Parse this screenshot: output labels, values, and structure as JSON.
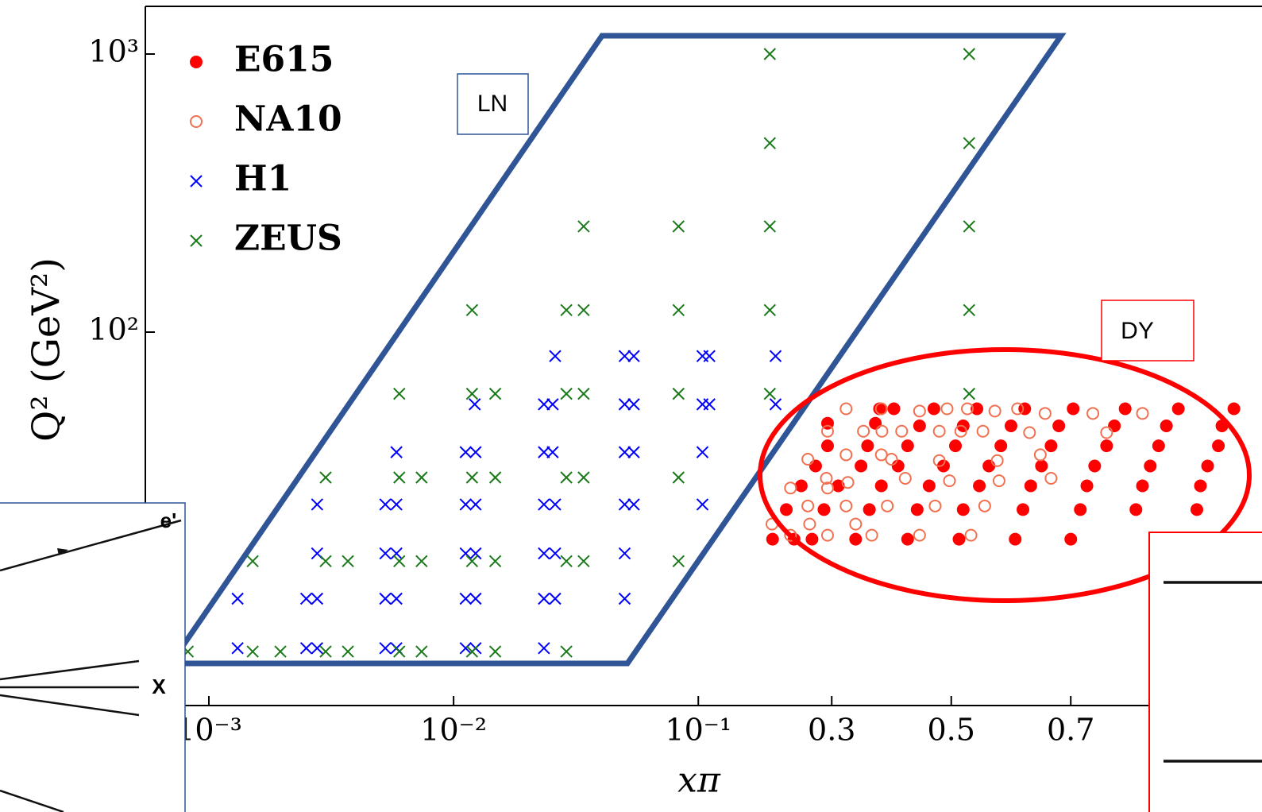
{
  "chart_data": {
    "type": "scatter",
    "xlabel": "xπ",
    "ylabel": "Q² (GeV²)",
    "xscale": "log-linear",
    "xscale_break": 0.2,
    "yscale": "log",
    "xlim": [
      0.00055,
      1.02
    ],
    "ylim": [
      4.54,
      1484
    ],
    "xticks": [
      {
        "value": 0.001,
        "label": "10⁻³"
      },
      {
        "value": 0.01,
        "label": "10⁻²"
      },
      {
        "value": 0.1,
        "label": "10⁻¹"
      },
      0.3,
      0.5,
      0.7
    ],
    "yticks": [
      {
        "value": 100,
        "label": "10²"
      },
      {
        "value": 1000,
        "label": "10³"
      }
    ],
    "legend": "upper left",
    "regions": [
      {
        "label": "LN"
      },
      {
        "label": "DY"
      }
    ],
    "inset_labels": [
      "e'",
      "X"
    ],
    "series": [
      {
        "name": "E615",
        "color": "#ff0000",
        "marker": "filled-circle",
        "x": [
          0.38,
          0.404,
          0.471,
          0.543,
          0.623,
          0.704,
          0.791,
          0.88,
          0.973,
          0.293,
          0.373,
          0.447,
          0.52,
          0.6,
          0.68,
          0.773,
          0.86,
          0.953,
          0.293,
          0.36,
          0.427,
          0.507,
          0.583,
          0.667,
          0.76,
          0.847,
          0.947,
          0.273,
          0.349,
          0.411,
          0.487,
          0.563,
          0.651,
          0.74,
          0.833,
          0.929,
          0.249,
          0.311,
          0.383,
          0.463,
          0.547,
          0.633,
          0.727,
          0.82,
          0.917,
          0.224,
          0.287,
          0.363,
          0.443,
          0.52,
          0.62,
          0.716,
          0.809,
          0.911,
          0.201,
          0.237,
          0.267,
          0.34,
          0.427,
          0.513,
          0.607,
          0.7
        ],
        "y": [
          53,
          53,
          53,
          53,
          53,
          53,
          53,
          53,
          53,
          47,
          47,
          46,
          46,
          46,
          46,
          46,
          46,
          46,
          39,
          39,
          39,
          39,
          39,
          39,
          39,
          39,
          39,
          33,
          33,
          33,
          33,
          33,
          33,
          33,
          33,
          33,
          28,
          28,
          28,
          28,
          28,
          28,
          28,
          28,
          28,
          23,
          23,
          23,
          23,
          23,
          23,
          23,
          23,
          23,
          18,
          18,
          18,
          18,
          18,
          18,
          18,
          18
        ]
      },
      {
        "name": "NA10",
        "color": "#f07050",
        "marker": "open-circle",
        "x": [
          0.324,
          0.383,
          0.447,
          0.493,
          0.527,
          0.573,
          0.611,
          0.657,
          0.737,
          0.82,
          0.293,
          0.353,
          0.384,
          0.417,
          0.48,
          0.516,
          0.553,
          0.631,
          0.76,
          0.324,
          0.383,
          0.4,
          0.48,
          0.577,
          0.649,
          0.26,
          0.291,
          0.327,
          0.423,
          0.497,
          0.58,
          0.667,
          0.231,
          0.293,
          0.26,
          0.324,
          0.393,
          0.473,
          0.556,
          0.2,
          0.263,
          0.34,
          0.231,
          0.293,
          0.367,
          0.447,
          0.533
        ],
        "y": [
          53,
          53,
          52,
          53,
          53,
          52,
          53,
          51,
          51,
          51,
          44,
          44,
          44,
          44,
          44,
          44,
          44,
          43.5,
          43.5,
          36.2,
          36.2,
          34.9,
          34.5,
          34.5,
          36.2,
          34.9,
          29.8,
          28.8,
          29.8,
          29.2,
          29.2,
          29.8,
          27.5,
          27.5,
          23.7,
          23.7,
          23.7,
          23.7,
          23.7,
          20.4,
          20.4,
          20.4,
          18.6,
          18.6,
          18.6,
          18.6,
          18.6
        ]
      },
      {
        "name": "H1",
        "color": "#0000ff",
        "marker": "x",
        "x": [
          0.026,
          0.05,
          0.0545,
          0.104,
          0.111,
          0.206,
          0.0122,
          0.0234,
          0.0254,
          0.05,
          0.0545,
          0.104,
          0.111,
          0.206,
          0.00584,
          0.0112,
          0.0123,
          0.0234,
          0.0254,
          0.05,
          0.0545,
          0.104,
          0.00277,
          0.00526,
          0.00584,
          0.0112,
          0.0123,
          0.0234,
          0.026,
          0.05,
          0.0545,
          0.104,
          0.00277,
          0.00526,
          0.00584,
          0.0112,
          0.0123,
          0.0234,
          0.026,
          0.05,
          0.00131,
          0.0025,
          0.00277,
          0.00526,
          0.00584,
          0.0112,
          0.0123,
          0.0234,
          0.026,
          0.05,
          0.00131,
          0.0025,
          0.00277,
          0.00526,
          0.00584,
          0.0112,
          0.0123,
          0.0234
        ],
        "y": [
          82,
          82,
          82,
          82,
          82,
          82,
          55,
          55,
          55,
          55,
          55,
          55,
          55,
          55,
          37,
          37,
          37,
          37,
          37,
          37,
          37,
          37,
          24,
          24,
          24,
          24,
          24,
          24,
          24,
          24,
          24,
          24,
          16,
          16,
          16,
          16,
          16,
          16,
          16,
          16,
          11,
          11,
          11,
          11,
          11,
          11,
          11,
          11,
          11,
          11,
          7.3,
          7.3,
          7.3,
          7.3,
          7.3,
          7.3,
          7.3,
          7.3
        ]
      },
      {
        "name": "ZEUS",
        "color": "#1a7a1a",
        "marker": "x",
        "x": [
          0.196,
          0.53,
          0.196,
          0.53,
          0.034,
          0.083,
          0.196,
          0.53,
          0.0119,
          0.0289,
          0.034,
          0.083,
          0.196,
          0.53,
          0.006,
          0.0119,
          0.0148,
          0.0289,
          0.034,
          0.083,
          0.196,
          0.53,
          0.003,
          0.006,
          0.0074,
          0.0119,
          0.0148,
          0.0289,
          0.034,
          0.083,
          0.00151,
          0.003,
          0.0037,
          0.006,
          0.0074,
          0.0119,
          0.0148,
          0.0289,
          0.034,
          0.083,
          0.00082,
          0.00151,
          0.00196,
          0.003,
          0.0037,
          0.006,
          0.0074,
          0.0119,
          0.0148,
          0.0289
        ],
        "y": [
          1000,
          1000,
          478,
          478,
          240,
          240,
          240,
          240,
          120,
          120,
          120,
          120,
          120,
          120,
          60,
          60,
          60,
          60,
          60,
          60,
          60,
          60,
          30,
          30,
          30,
          30,
          30,
          30,
          30,
          30,
          15,
          15,
          15,
          15,
          15,
          15,
          15,
          15,
          15,
          15,
          7.1,
          7.1,
          7.1,
          7.1,
          7.1,
          7.1,
          7.1,
          7.1,
          7.1,
          7.1
        ]
      }
    ]
  }
}
